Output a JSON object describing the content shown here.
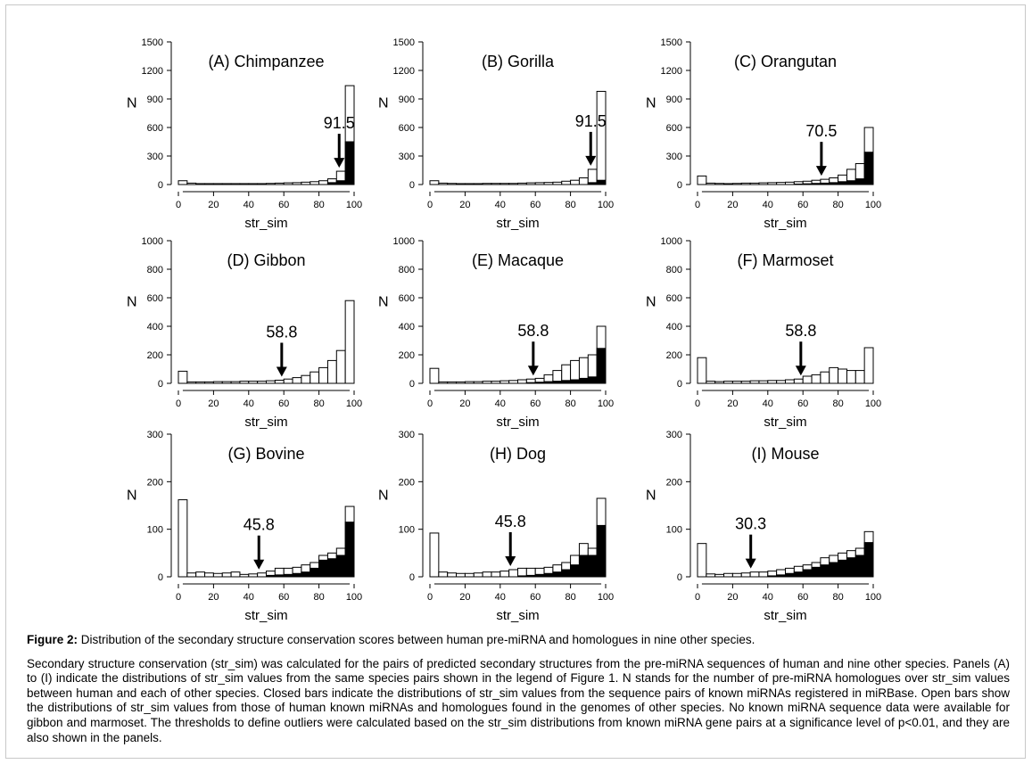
{
  "chart_data": [
    {
      "type": "bar",
      "title": "(A) Chimpanzee",
      "ylabel": "N",
      "xlabel": "str_sim",
      "xlim": [
        0,
        100
      ],
      "ylim": [
        0,
        1500
      ],
      "yticks": [
        "0",
        "300",
        "600",
        "900",
        "1200",
        "1500"
      ],
      "xticks": [
        "0",
        "20",
        "40",
        "60",
        "80",
        "100"
      ],
      "threshold": {
        "label": "91.5",
        "value": 91.5
      },
      "series": [
        {
          "name": "open",
          "values": [
            40,
            15,
            10,
            10,
            10,
            10,
            10,
            10,
            10,
            10,
            12,
            15,
            18,
            20,
            25,
            30,
            40,
            60,
            140,
            1040
          ]
        },
        {
          "name": "closed",
          "values": [
            0,
            0,
            0,
            0,
            0,
            0,
            0,
            0,
            0,
            0,
            0,
            0,
            0,
            0,
            0,
            0,
            0,
            20,
            40,
            450
          ]
        }
      ]
    },
    {
      "type": "bar",
      "title": "(B) Gorilla",
      "ylabel": "N",
      "xlabel": "str_sim",
      "xlim": [
        0,
        100
      ],
      "ylim": [
        0,
        1500
      ],
      "yticks": [
        "0",
        "300",
        "600",
        "900",
        "1200",
        "1500"
      ],
      "xticks": [
        "0",
        "20",
        "40",
        "60",
        "80",
        "100"
      ],
      "threshold": {
        "label": "91.5",
        "value": 91.5
      },
      "series": [
        {
          "name": "open",
          "values": [
            40,
            15,
            12,
            10,
            10,
            10,
            12,
            12,
            12,
            12,
            15,
            18,
            20,
            22,
            25,
            35,
            45,
            70,
            160,
            980
          ]
        },
        {
          "name": "closed",
          "values": [
            0,
            0,
            0,
            0,
            0,
            0,
            0,
            0,
            0,
            0,
            0,
            0,
            0,
            0,
            0,
            0,
            0,
            0,
            20,
            45
          ]
        }
      ]
    },
    {
      "type": "bar",
      "title": "(C) Orangutan",
      "ylabel": "N",
      "xlabel": "str_sim",
      "xlim": [
        0,
        100
      ],
      "ylim": [
        0,
        1500
      ],
      "yticks": [
        "0",
        "300",
        "600",
        "900",
        "1200",
        "1500"
      ],
      "xticks": [
        "0",
        "20",
        "40",
        "60",
        "80",
        "100"
      ],
      "threshold": {
        "label": "70.5",
        "value": 70.5
      },
      "series": [
        {
          "name": "open",
          "values": [
            90,
            15,
            12,
            10,
            12,
            15,
            15,
            18,
            20,
            22,
            25,
            30,
            35,
            45,
            55,
            70,
            100,
            160,
            220,
            600
          ]
        },
        {
          "name": "closed",
          "values": [
            0,
            0,
            0,
            0,
            0,
            0,
            0,
            0,
            0,
            0,
            0,
            5,
            8,
            12,
            15,
            20,
            30,
            40,
            60,
            340
          ]
        }
      ]
    },
    {
      "type": "bar",
      "title": "(D) Gibbon",
      "ylabel": "N",
      "xlabel": "str_sim",
      "xlim": [
        0,
        100
      ],
      "ylim": [
        0,
        1000
      ],
      "yticks": [
        "0",
        "200",
        "400",
        "600",
        "800",
        "1000"
      ],
      "xticks": [
        "0",
        "20",
        "40",
        "60",
        "80",
        "100"
      ],
      "threshold": {
        "label": "58.8",
        "value": 58.8
      },
      "series": [
        {
          "name": "open",
          "values": [
            85,
            10,
            10,
            10,
            12,
            12,
            12,
            15,
            15,
            15,
            18,
            22,
            30,
            40,
            55,
            80,
            110,
            160,
            230,
            580
          ]
        },
        {
          "name": "closed",
          "values": [
            0,
            0,
            0,
            0,
            0,
            0,
            0,
            0,
            0,
            0,
            0,
            0,
            0,
            0,
            0,
            0,
            0,
            0,
            0,
            0
          ]
        }
      ]
    },
    {
      "type": "bar",
      "title": "(E) Macaque",
      "ylabel": "N",
      "xlabel": "str_sim",
      "xlim": [
        0,
        100
      ],
      "ylim": [
        0,
        1000
      ],
      "yticks": [
        "0",
        "200",
        "400",
        "600",
        "800",
        "1000"
      ],
      "xticks": [
        "0",
        "20",
        "40",
        "60",
        "80",
        "100"
      ],
      "threshold": {
        "label": "58.8",
        "value": 58.8
      },
      "series": [
        {
          "name": "open",
          "values": [
            105,
            10,
            10,
            10,
            12,
            12,
            15,
            15,
            18,
            20,
            25,
            30,
            35,
            60,
            90,
            130,
            160,
            180,
            200,
            400
          ]
        },
        {
          "name": "closed",
          "values": [
            0,
            0,
            0,
            0,
            0,
            0,
            0,
            0,
            0,
            0,
            0,
            5,
            8,
            12,
            15,
            20,
            25,
            35,
            45,
            245
          ]
        }
      ]
    },
    {
      "type": "bar",
      "title": "(F) Marmoset",
      "ylabel": "N",
      "xlabel": "str_sim",
      "xlim": [
        0,
        100
      ],
      "ylim": [
        0,
        1000
      ],
      "yticks": [
        "0",
        "200",
        "400",
        "600",
        "800",
        "1000"
      ],
      "xticks": [
        "0",
        "20",
        "40",
        "60",
        "80",
        "100"
      ],
      "threshold": {
        "label": "58.8",
        "value": 58.8
      },
      "series": [
        {
          "name": "open",
          "values": [
            180,
            15,
            12,
            15,
            15,
            15,
            18,
            18,
            20,
            20,
            25,
            30,
            50,
            60,
            80,
            110,
            100,
            90,
            90,
            250
          ]
        },
        {
          "name": "closed",
          "values": [
            0,
            0,
            0,
            0,
            0,
            0,
            0,
            0,
            0,
            0,
            0,
            0,
            0,
            0,
            0,
            0,
            0,
            0,
            0,
            0
          ]
        }
      ]
    },
    {
      "type": "bar",
      "title": "(G) Bovine",
      "ylabel": "N",
      "xlabel": "str_sim",
      "xlim": [
        0,
        100
      ],
      "ylim": [
        0,
        300
      ],
      "yticks": [
        "0",
        "100",
        "200",
        "300"
      ],
      "xticks": [
        "0",
        "20",
        "40",
        "60",
        "80",
        "100"
      ],
      "threshold": {
        "label": "45.8",
        "value": 45.8
      },
      "series": [
        {
          "name": "open",
          "values": [
            162,
            8,
            10,
            8,
            7,
            8,
            10,
            5,
            6,
            8,
            12,
            18,
            18,
            20,
            25,
            30,
            45,
            50,
            60,
            148
          ]
        },
        {
          "name": "closed",
          "values": [
            0,
            0,
            0,
            0,
            0,
            0,
            0,
            0,
            0,
            0,
            3,
            4,
            5,
            7,
            10,
            18,
            35,
            38,
            45,
            115
          ]
        }
      ]
    },
    {
      "type": "bar",
      "title": "(H) Dog",
      "ylabel": "N",
      "xlabel": "str_sim",
      "xlim": [
        0,
        100
      ],
      "ylim": [
        0,
        300
      ],
      "yticks": [
        "0",
        "100",
        "200",
        "300"
      ],
      "xticks": [
        "0",
        "20",
        "40",
        "60",
        "80",
        "100"
      ],
      "threshold": {
        "label": "45.8",
        "value": 45.8
      },
      "series": [
        {
          "name": "open",
          "values": [
            92,
            10,
            8,
            7,
            7,
            8,
            10,
            10,
            12,
            15,
            18,
            18,
            18,
            20,
            25,
            30,
            45,
            70,
            60,
            165
          ]
        },
        {
          "name": "closed",
          "values": [
            0,
            0,
            0,
            0,
            0,
            0,
            0,
            0,
            0,
            0,
            2,
            3,
            5,
            7,
            10,
            15,
            25,
            45,
            45,
            108
          ]
        }
      ]
    },
    {
      "type": "bar",
      "title": "(I) Mouse",
      "ylabel": "N",
      "xlabel": "str_sim",
      "xlim": [
        0,
        100
      ],
      "ylim": [
        0,
        300
      ],
      "yticks": [
        "0",
        "100",
        "200",
        "300"
      ],
      "xticks": [
        "0",
        "20",
        "40",
        "60",
        "80",
        "100"
      ],
      "threshold": {
        "label": "30.3",
        "value": 30.3
      },
      "series": [
        {
          "name": "open",
          "values": [
            70,
            6,
            5,
            7,
            7,
            8,
            10,
            10,
            12,
            15,
            18,
            22,
            25,
            30,
            40,
            45,
            50,
            55,
            60,
            95
          ]
        },
        {
          "name": "closed",
          "values": [
            0,
            0,
            0,
            0,
            0,
            0,
            0,
            0,
            2,
            4,
            7,
            10,
            15,
            20,
            25,
            30,
            35,
            40,
            45,
            72
          ]
        }
      ]
    }
  ],
  "caption": {
    "label": "Figure 2:",
    "title_text": " Distribution of the secondary structure conservation scores between human pre-miRNA and homologues in nine other species.",
    "body": "Secondary structure conservation (str_sim) was calculated for the pairs of predicted secondary structures from the pre-miRNA sequences of human and nine other species. Panels (A) to (I) indicate the distributions of str_sim values from the same species pairs shown in the legend of Figure 1. N stands for the number of pre-miRNA homologues over str_sim values between human and each of other species. Closed bars indicate the distributions of str_sim values from the sequence pairs of known miRNAs registered in miRBase. Open bars show the distributions of str_sim values from those of human known miRNAs and homologues found in the genomes of other species. No known miRNA sequence data were available for gibbon and marmoset. The thresholds to define outliers were calculated based on the str_sim distributions from known miRNA gene pairs at a significance level of p<0.01, and they are also shown in the panels."
  }
}
